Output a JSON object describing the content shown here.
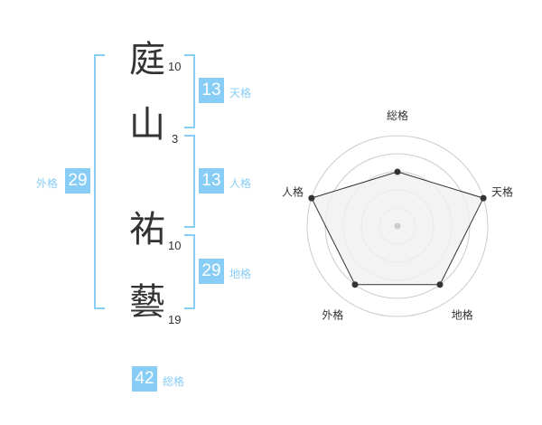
{
  "name": {
    "chars": [
      {
        "char": "庭",
        "strokes": "10"
      },
      {
        "char": "山",
        "strokes": "3"
      },
      {
        "char": "祐",
        "strokes": "10"
      },
      {
        "char": "藝",
        "strokes": "19"
      }
    ]
  },
  "kaku": {
    "tenkaku": {
      "label": "天格",
      "value": "13"
    },
    "jinkaku": {
      "label": "人格",
      "value": "13"
    },
    "chikaku": {
      "label": "地格",
      "value": "29"
    },
    "gaikaku": {
      "label": "外格",
      "value": "29"
    },
    "soukaku": {
      "label": "総格",
      "value": "42"
    }
  },
  "chart_data": {
    "type": "radar",
    "axes": [
      "総格",
      "天格",
      "地格",
      "外格",
      "人格"
    ],
    "values": [
      3,
      5,
      4,
      4,
      5
    ],
    "range": [
      0,
      5
    ],
    "rings": 5
  },
  "colors": {
    "accent": "#88cdf6",
    "fill": "#f0f0f0",
    "line": "#333333",
    "grid": "#cccccc"
  }
}
